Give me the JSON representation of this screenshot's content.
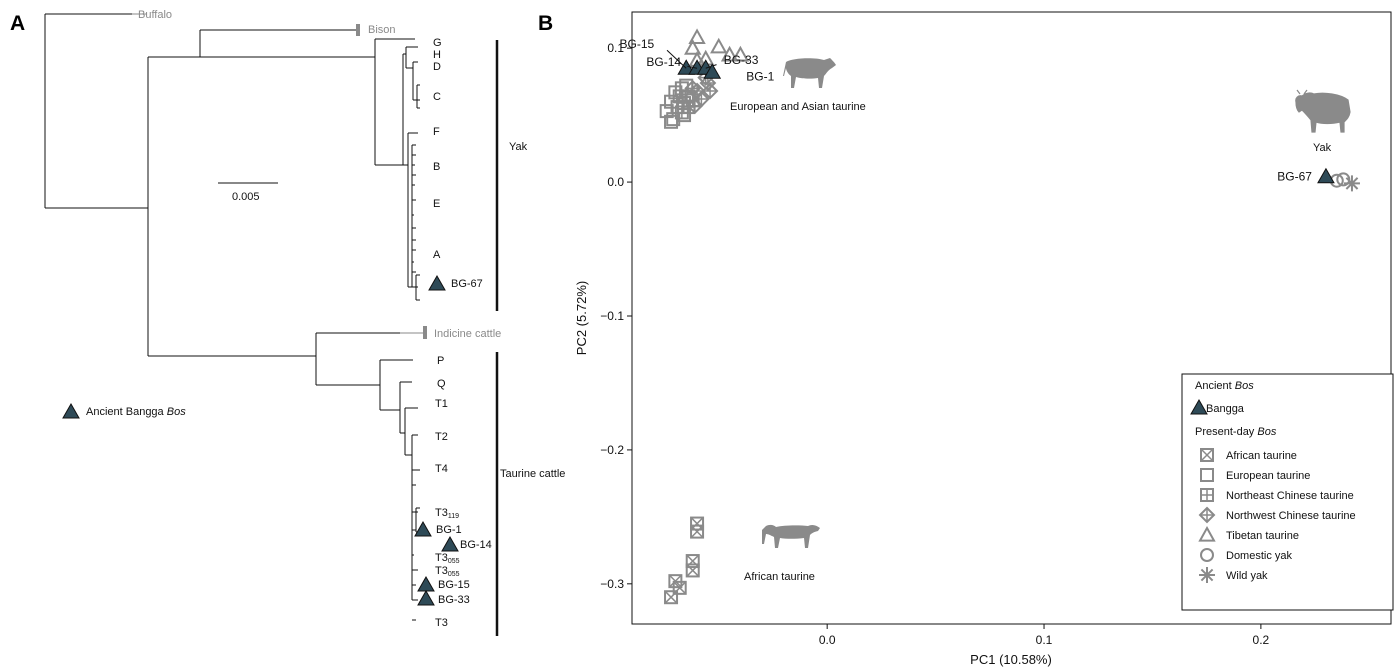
{
  "panels": {
    "a": "A",
    "b": "B"
  },
  "tree": {
    "outgroups": [
      "Buffalo",
      "Bison",
      "Indicine cattle"
    ],
    "yak_clades": [
      "G",
      "H",
      "D",
      "C",
      "F",
      "B",
      "E",
      "A"
    ],
    "yak_label": "Yak",
    "taurine_clades": [
      "P",
      "Q",
      "T1",
      "T2",
      "T4",
      "T3",
      "T3",
      "T3",
      "T3"
    ],
    "taurine_subscripts": [
      "119",
      "055",
      "055"
    ],
    "taurine_label": "Taurine cattle",
    "ancient_samples": [
      "BG-67",
      "BG-1",
      "BG-14",
      "BG-15",
      "BG-33"
    ],
    "scale_value": "0.005",
    "legend_prefix": "Ancient Bangga",
    "legend_italic": "Bos"
  },
  "chart_data": {
    "type": "scatter",
    "xlabel": "PC1 (10.58%)",
    "ylabel": "PC2 (5.72%)",
    "xlim": [
      -0.09,
      0.26
    ],
    "ylim": [
      -0.33,
      0.127
    ],
    "xticks": [
      0.0,
      0.1,
      0.2
    ],
    "xtick_labels": [
      "0.0",
      "0.1",
      "0.2"
    ],
    "yticks": [
      0.1,
      0.0,
      -0.1,
      -0.2,
      -0.3
    ],
    "ytick_labels": [
      "0.1",
      "0.0",
      "−0.1",
      "−0.2",
      "−0.3"
    ],
    "color_ancient": "#2e4a57",
    "color_present": "#8a8a8a",
    "series": [
      {
        "name": "African taurine",
        "marker": "boxcross",
        "points": [
          [
            -0.06,
            -0.255
          ],
          [
            -0.06,
            -0.261
          ],
          [
            -0.062,
            -0.283
          ],
          [
            -0.062,
            -0.29
          ],
          [
            -0.07,
            -0.298
          ],
          [
            -0.068,
            -0.303
          ],
          [
            -0.072,
            -0.31
          ]
        ]
      },
      {
        "name": "European taurine",
        "marker": "square",
        "points": [
          [
            -0.07,
            0.067
          ],
          [
            -0.072,
            0.06
          ],
          [
            -0.074,
            0.053
          ],
          [
            -0.071,
            0.047
          ],
          [
            -0.067,
            0.07
          ],
          [
            -0.065,
            0.072
          ],
          [
            -0.069,
            0.056
          ],
          [
            -0.066,
            0.05
          ],
          [
            -0.072,
            0.045
          ],
          [
            -0.064,
            0.064
          ]
        ]
      },
      {
        "name": "Northeast Chinese taurine",
        "marker": "boxplus",
        "points": [
          [
            -0.068,
            0.064
          ],
          [
            -0.066,
            0.059
          ],
          [
            -0.062,
            0.061
          ],
          [
            -0.067,
            0.052
          ],
          [
            -0.064,
            0.056
          ]
        ]
      },
      {
        "name": "Northwest Chinese taurine",
        "marker": "diamondplus",
        "points": [
          [
            -0.06,
            0.068
          ],
          [
            -0.055,
            0.074
          ],
          [
            -0.058,
            0.062
          ],
          [
            -0.062,
            0.07
          ],
          [
            -0.054,
            0.068
          ],
          [
            -0.056,
            0.078
          ],
          [
            -0.061,
            0.057
          ]
        ]
      },
      {
        "name": "Tibetan taurine",
        "marker": "triangle",
        "points": [
          [
            -0.06,
            0.108
          ],
          [
            -0.062,
            0.1
          ],
          [
            -0.05,
            0.101
          ],
          [
            -0.045,
            0.095
          ],
          [
            -0.04,
            0.095
          ],
          [
            -0.056,
            0.092
          ],
          [
            -0.06,
            0.091
          ],
          [
            -0.058,
            0.086
          ]
        ]
      },
      {
        "name": "Domestic yak",
        "marker": "circle",
        "points": [
          [
            0.235,
            0.001
          ],
          [
            0.238,
            0.002
          ]
        ]
      },
      {
        "name": "Wild yak",
        "marker": "asterisk",
        "points": [
          [
            0.242,
            -0.001
          ]
        ]
      }
    ],
    "ancient": [
      {
        "label": "BG-15",
        "x": -0.065,
        "y": 0.085
      },
      {
        "label": "BG-14",
        "x": -0.06,
        "y": 0.085
      },
      {
        "label": "BG-33",
        "x": -0.056,
        "y": 0.085
      },
      {
        "label": "BG-1",
        "x": -0.053,
        "y": 0.082
      },
      {
        "label": "BG-67",
        "x": 0.23,
        "y": 0.004
      }
    ],
    "annotations": [
      "European and Asian taurine",
      "Yak",
      "African taurine"
    ],
    "legend": {
      "ancient_title": "Ancient",
      "present_title": "Present-day",
      "title_italic": "Bos",
      "ancient_entry": "Bangga"
    }
  }
}
